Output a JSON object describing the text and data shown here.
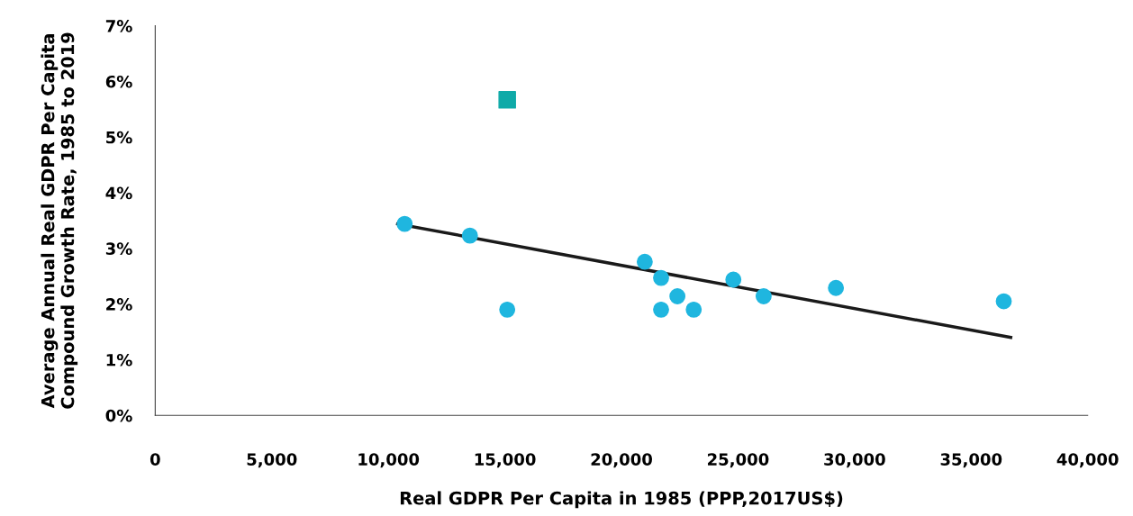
{
  "chart_data": {
    "type": "scatter",
    "xlabel": "Real GDPR Per Capita in 1985 (PPP,2017US$)",
    "ylabel": "Average Annual Real GDPR Per Capita\nCompound Growth Rate, 1985 to 2019",
    "xlim": [
      0,
      40000
    ],
    "ylim": [
      0,
      7
    ],
    "xticks": [
      {
        "value": 0,
        "label": "0"
      },
      {
        "value": 5000,
        "label": "5,000"
      },
      {
        "value": 10000,
        "label": "10,000"
      },
      {
        "value": 15000,
        "label": "15,000"
      },
      {
        "value": 20000,
        "label": "20,000"
      },
      {
        "value": 25000,
        "label": "25,000"
      },
      {
        "value": 30000,
        "label": "30,000"
      },
      {
        "value": 35000,
        "label": "35,000"
      },
      {
        "value": 40000,
        "label": "40,000"
      }
    ],
    "yticks": [
      {
        "value": 0,
        "label": "0%"
      },
      {
        "value": 1,
        "label": "1%"
      },
      {
        "value": 2,
        "label": "2%"
      },
      {
        "value": 3,
        "label": "3%"
      },
      {
        "value": 4,
        "label": "4%"
      },
      {
        "value": 5,
        "label": "5%"
      },
      {
        "value": 6,
        "label": "6%"
      },
      {
        "value": 7,
        "label": "7%"
      }
    ],
    "grid": false,
    "series": [
      {
        "marker": "circle",
        "color": "#1fb6df",
        "x": [
          10700,
          13500,
          15100,
          21000,
          21700,
          21700,
          22400,
          23100,
          24800,
          26100,
          29200,
          36400
        ],
        "values": [
          3.44,
          3.23,
          1.9,
          2.76,
          2.47,
          1.9,
          2.14,
          1.9,
          2.44,
          2.14,
          2.29,
          2.05
        ]
      },
      {
        "marker": "square",
        "color": "#0faaa8",
        "x": [
          15100
        ],
        "values": [
          5.67
        ]
      },
      {
        "type": "line",
        "marker": "none",
        "color": "#1a1a1a",
        "x": [
          10400,
          36700
        ],
        "values": [
          3.44,
          1.4
        ]
      }
    ]
  }
}
